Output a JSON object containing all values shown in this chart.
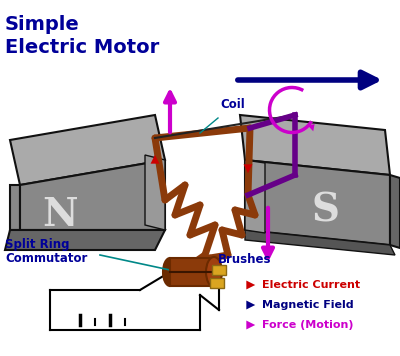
{
  "title_line1": "Simple",
  "title_line2": "Electric Motor",
  "title_color": "#000099",
  "bg_color": "#ffffff",
  "magnet_color_top": "#999999",
  "magnet_color_face": "#777777",
  "magnet_color_dark": "#555555",
  "magnet_edge": "#111111",
  "N_label": "N",
  "S_label": "S",
  "label_color": "#dddddd",
  "coil_color": "#8B3A0A",
  "coil_label": "Coil",
  "coil_label_color": "#000099",
  "split_ring_label_1": "Split Ring",
  "split_ring_label_2": "Commutator",
  "split_ring_color": "#000099",
  "brushes_label": "Brushes",
  "brushes_color": "#000099",
  "electric_current_color": "#cc0000",
  "magnetic_field_color": "#000080",
  "force_color": "#cc00cc",
  "electric_current_label": "Electric Current",
  "magnetic_field_label": "Magnetic Field",
  "force_label": "Force (Motion)",
  "commutator_color": "#8B3A0A",
  "commutator_ring_color": "#6B2A00",
  "brush_color": "#DAA520",
  "wire_color": "#000000"
}
